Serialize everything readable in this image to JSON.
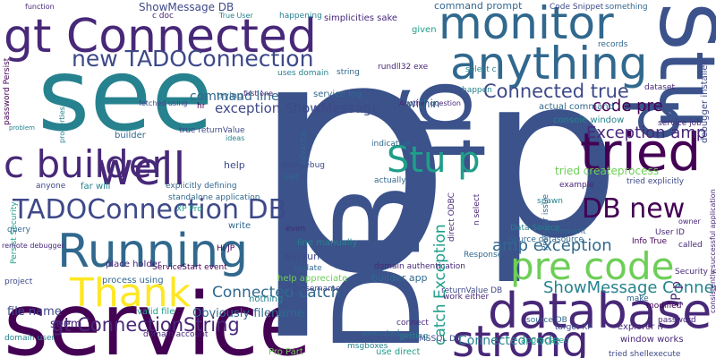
{
  "words": [
    "see",
    "service",
    "p",
    "p",
    "DB",
    "gt",
    "Stu",
    "p",
    "gt Connected",
    "monitor",
    "anything",
    "tried",
    "database",
    "strong",
    "pre code",
    "Running",
    "well",
    "c builder",
    "Stu p",
    "DB new",
    "Thank",
    "TADOConnection DB",
    "new TADOConnection",
    "exception ShowMessage",
    "command line",
    "Connected true",
    "code pre",
    "Exception amp",
    "ShowMessage Connected",
    "Connected catch",
    "gt ConnectionString",
    "amp exception",
    "Connected code",
    "catch Exception",
    "Obviously filename",
    "file name",
    "seem",
    "within",
    "tried createprocess",
    "builder app",
    "ShowMessage DB",
    "command prompt",
    "happening",
    "simplicities sake",
    "given",
    "True User",
    "c doc",
    "function",
    "rundll32 exe",
    "Another question",
    "actual command",
    "console window",
    "service job",
    "tried explicitly",
    "example",
    "spawn",
    "Source datasource",
    "Data Source",
    "Response",
    "direct ODBC",
    "line manually",
    "will run",
    "update",
    "help appreciate",
    "nothing",
    "valid file",
    "process using",
    "Persist Security",
    "domain user",
    "project",
    "ServiceStart event",
    "place holder",
    "builder",
    "remote debugger",
    "query",
    "anyone",
    "far will",
    "explicitly defining",
    "standalone application",
    "XP Pro",
    "password Persist",
    "problem",
    "properties",
    "fetched using",
    "true returnValue",
    "ideas",
    "service log",
    "uses domain",
    "string",
    "trying",
    "Code Snippet",
    "something",
    "records",
    "dataset",
    "happen",
    "select c",
    "Info True",
    "called",
    "User ID",
    "Security Info",
    "make",
    "modified",
    "password",
    "explorer n",
    "window works",
    "tried shellexecute",
    "CBuilder target",
    "target XP",
    "appreciated",
    "MSSQL DB",
    "executed",
    "getting",
    "msgboxes",
    "Pro Part",
    "use direct",
    "connect",
    "domain account",
    "Hi JP",
    "ID username",
    "indicative",
    "actually",
    "domain authentication",
    "one debug",
    "use",
    "advance",
    "even",
    "write",
    "help",
    "hr",
    "first one",
    "n select",
    "JP p",
    "debugger installed",
    "consistently successful application",
    "owner",
    "Provider issue",
    "returnValue DB",
    "work either",
    "source DB",
    "comment"
  ]
}
